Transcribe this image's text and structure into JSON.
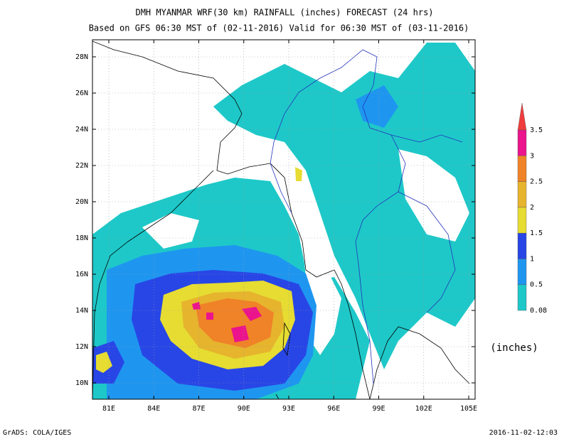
{
  "title": "DMH MYANMAR WRF(30 km) RAINFALL (inches) FORECAST (24 hrs)",
  "subtitle": "Based on GFS 06:30 MST of (02-11-2016) Valid for 06:30 MST of (03-11-2016)",
  "map": {
    "lat_labels": [
      "28N",
      "26N",
      "24N",
      "22N",
      "20N",
      "18N",
      "16N",
      "14N",
      "12N",
      "10N"
    ],
    "lon_labels": [
      "81E",
      "84E",
      "87E",
      "90E",
      "93E",
      "96E",
      "99E",
      "102E",
      "105E"
    ]
  },
  "legend": {
    "levels": [
      0.08,
      0.5,
      1,
      1.5,
      2,
      2.5,
      3,
      3.5
    ],
    "colors": [
      "#1ec8c8",
      "#1e96f0",
      "#2846e6",
      "#e6dc32",
      "#e6b42d",
      "#f08228",
      "#eb148c",
      "#f03c3c"
    ],
    "unit_label": "(inches)"
  },
  "footer": {
    "left": "GrADS: COLA/IGES",
    "right": "2016-11-02-12:03"
  }
}
